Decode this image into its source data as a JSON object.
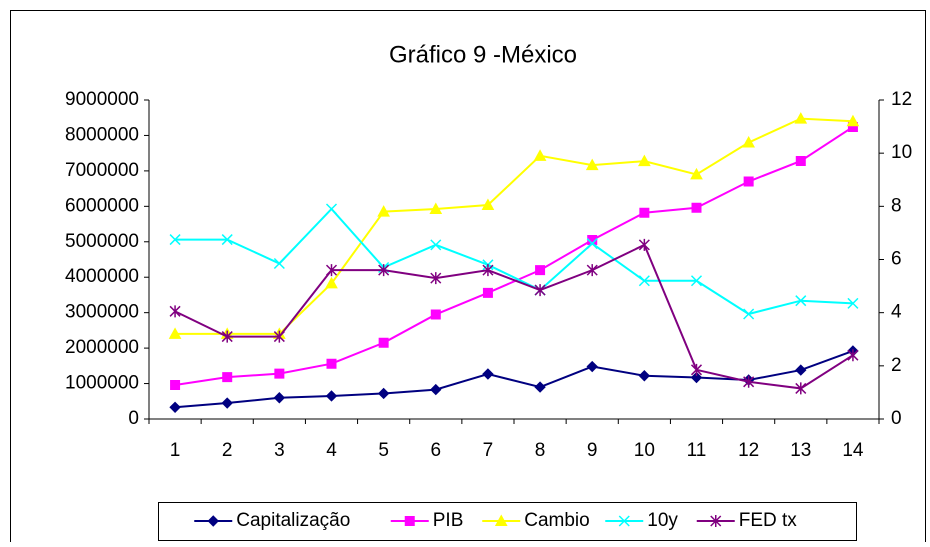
{
  "chart_data": {
    "type": "line",
    "title": "Gráfico 9 -México",
    "categories": [
      "1",
      "2",
      "3",
      "4",
      "5",
      "6",
      "7",
      "8",
      "9",
      "10",
      "11",
      "12",
      "13",
      "14"
    ],
    "ylim": [
      0,
      9000000
    ],
    "yticks": [
      0,
      1000000,
      2000000,
      3000000,
      4000000,
      5000000,
      6000000,
      7000000,
      8000000,
      9000000
    ],
    "y2lim": [
      0,
      12
    ],
    "y2ticks": [
      0,
      2,
      4,
      6,
      8,
      10,
      12
    ],
    "legend": "bottom",
    "series": [
      {
        "name": "Capitalização",
        "color": "#000080",
        "marker": "diamond",
        "values": [
          330000,
          450000,
          600000,
          650000,
          720000,
          830000,
          1270000,
          900000,
          1480000,
          1220000,
          1170000,
          1100000,
          1380000,
          1920000
        ]
      },
      {
        "name": "PIB",
        "color": "#ff00ff",
        "marker": "square",
        "values": [
          960000,
          1180000,
          1280000,
          1560000,
          2150000,
          2950000,
          3560000,
          4200000,
          5050000,
          5820000,
          5960000,
          6700000,
          7280000,
          8240000
        ]
      },
      {
        "name": "Cambio",
        "color": "#ffff00",
        "marker": "triangle",
        "axis": "y2",
        "values": [
          3.2,
          3.2,
          3.2,
          5.1,
          7.8,
          7.9,
          8.05,
          9.9,
          9.55,
          9.7,
          9.2,
          10.4,
          11.3,
          11.2
        ]
      },
      {
        "name": "10y",
        "color": "#00ffff",
        "marker": "x",
        "axis": "y2",
        "values": [
          6.75,
          6.75,
          5.85,
          7.9,
          5.7,
          6.55,
          5.8,
          4.85,
          6.6,
          5.2,
          5.2,
          3.95,
          4.45,
          4.35
        ]
      },
      {
        "name": "FED tx",
        "color": "#800080",
        "marker": "star",
        "axis": "y2",
        "values": [
          4.05,
          3.1,
          3.1,
          5.6,
          5.6,
          5.3,
          5.6,
          4.85,
          5.6,
          6.55,
          1.85,
          1.4,
          1.15,
          2.4
        ]
      }
    ]
  }
}
